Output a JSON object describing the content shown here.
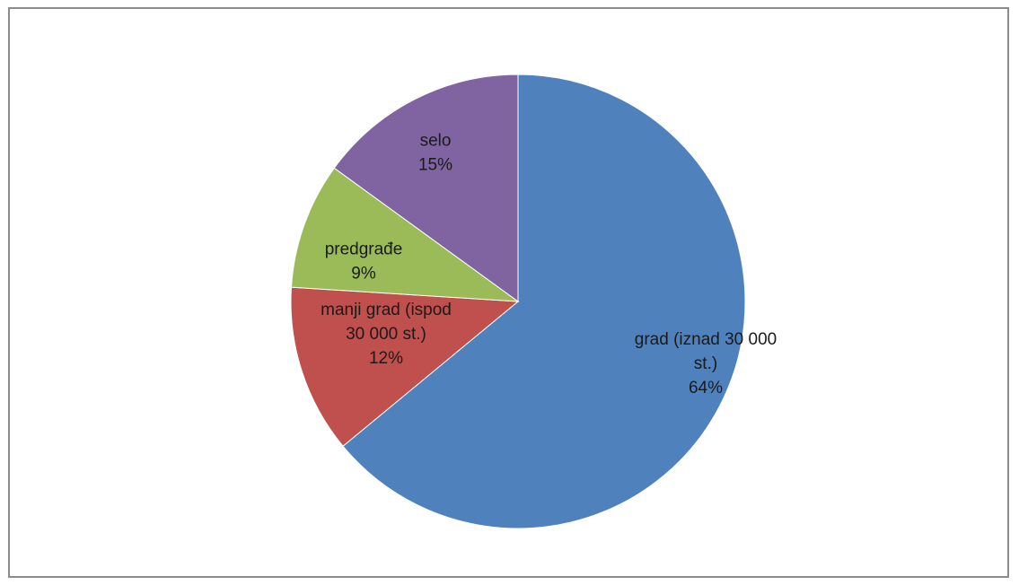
{
  "chart_data": {
    "type": "pie",
    "title": "",
    "start_angle_deg": 0,
    "direction": "clockwise",
    "slices": [
      {
        "label_lines": [
          "grad (iznad 30 000",
          "st.)",
          "64%"
        ],
        "value": 64,
        "color": "#4f81bd"
      },
      {
        "label_lines": [
          "manji grad (ispod",
          "30 000 st.)",
          "12%"
        ],
        "value": 12,
        "color": "#c0504d"
      },
      {
        "label_lines": [
          "predgrađe",
          "9%"
        ],
        "value": 9,
        "color": "#9bbb59"
      },
      {
        "label_lines": [
          "selo",
          "15%"
        ],
        "value": 15,
        "color": "#8064a2"
      }
    ]
  }
}
